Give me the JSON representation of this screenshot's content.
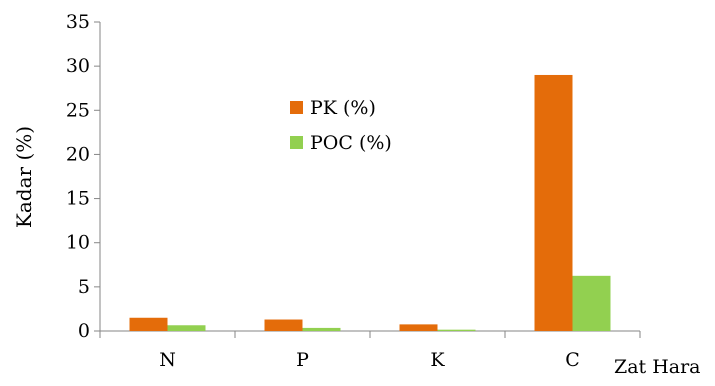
{
  "chart_data": {
    "type": "bar",
    "categories": [
      "N",
      "P",
      "K",
      "C"
    ],
    "series": [
      {
        "name": "PK (%)",
        "values": [
          1.5,
          1.3,
          0.75,
          29.0
        ],
        "color": "#E46C0A"
      },
      {
        "name": "POC (%)",
        "values": [
          0.65,
          0.35,
          0.15,
          6.25
        ],
        "color": "#92D050"
      }
    ],
    "title": "",
    "xlabel": "Zat Hara",
    "ylabel": "Kadar (%)",
    "ylim": [
      0,
      35
    ],
    "yticks": [
      0,
      5,
      10,
      15,
      20,
      25,
      30,
      35
    ],
    "grid": false,
    "legend_position": "upper-center"
  }
}
